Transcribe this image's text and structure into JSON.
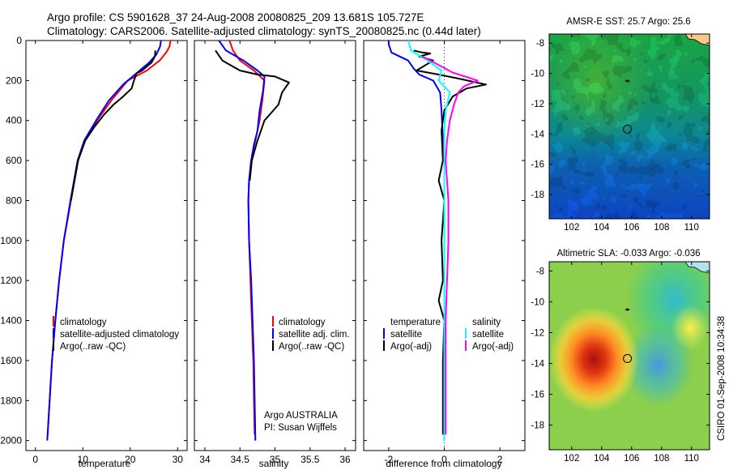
{
  "header": {
    "title_line1": "Argo profile: CS 5901628_37 24-Aug-2008 20080825_209 13.681S 105.727E",
    "title_line2": "Climatology: CARS2006. Satellite-adjusted climatology: synTS_20080825.nc (0.44d later)"
  },
  "colors": {
    "climatology": "#ff0000",
    "satellite": "#0000ff",
    "argo": "#000000",
    "salinity_satellite": "#00ffff",
    "salinity_argo": "#ff00ff"
  },
  "credits": {
    "program": "Argo AUSTRALIA",
    "pi": "PI: Susan Wijffels",
    "stamp": "CSIRO 01-Sep-2008 10:34:38"
  },
  "chart_data": [
    {
      "type": "line",
      "xlabel": "temperature",
      "xlim": [
        -2,
        32
      ],
      "ylim": [
        2050,
        0
      ],
      "xticks": [
        0,
        10,
        20,
        30
      ],
      "yticks": [
        0,
        200,
        400,
        600,
        800,
        1000,
        1200,
        1400,
        1600,
        1800,
        2000
      ],
      "legend": [
        "climatology",
        "satellite-adjusted climatology",
        "Argo(..raw -QC)"
      ],
      "series": [
        {
          "name": "climatology",
          "color": "#ff0000",
          "points": [
            [
              28.5,
              0
            ],
            [
              28.3,
              30
            ],
            [
              27.6,
              60
            ],
            [
              26.2,
              100
            ],
            [
              23.5,
              150
            ],
            [
              19.5,
              200
            ],
            [
              16,
              300
            ],
            [
              13,
              400
            ],
            [
              10.5,
              500
            ],
            [
              9,
              600
            ],
            [
              7.5,
              800
            ],
            [
              6,
              1000
            ],
            [
              5,
              1200
            ],
            [
              4.2,
              1400
            ],
            [
              3.5,
              1600
            ],
            [
              3,
              1800
            ],
            [
              2.6,
              1970
            ]
          ]
        },
        {
          "name": "satellite-adjusted climatology",
          "color": "#0000ff",
          "points": [
            [
              26.5,
              0
            ],
            [
              26.3,
              30
            ],
            [
              25.5,
              70
            ],
            [
              24,
              110
            ],
            [
              21.5,
              160
            ],
            [
              18.5,
              220
            ],
            [
              15.5,
              300
            ],
            [
              12.8,
              400
            ],
            [
              10.3,
              500
            ],
            [
              8.9,
              600
            ],
            [
              7.4,
              800
            ],
            [
              6,
              1000
            ],
            [
              5,
              1200
            ],
            [
              4.2,
              1400
            ],
            [
              3.5,
              1600
            ],
            [
              3,
              1800
            ],
            [
              2.5,
              2000
            ]
          ]
        },
        {
          "name": "Argo(..raw -QC)",
          "color": "#000000",
          "points": [
            [
              25.3,
              50
            ],
            [
              25.2,
              80
            ],
            [
              24.5,
              110
            ],
            [
              22.5,
              150
            ],
            [
              21.3,
              165
            ],
            [
              20.8,
              200
            ],
            [
              20.3,
              240
            ],
            [
              18.5,
              280
            ],
            [
              16.5,
              320
            ],
            [
              14.5,
              370
            ],
            [
              12.5,
              430
            ],
            [
              10.5,
              500
            ],
            [
              9,
              600
            ],
            [
              7.5,
              800
            ]
          ]
        }
      ]
    },
    {
      "type": "line",
      "xlabel": "salinity",
      "xlim": [
        33.85,
        36.15
      ],
      "ylim": [
        2050,
        0
      ],
      "xticks": [
        34,
        34.5,
        35,
        35.5,
        36
      ],
      "legend": [
        "climatology",
        "satellite adj. clim.",
        "Argo(..raw -QC)"
      ],
      "series": [
        {
          "name": "climatology",
          "color": "#ff0000",
          "points": [
            [
              34.35,
              0
            ],
            [
              34.4,
              50
            ],
            [
              34.5,
              100
            ],
            [
              34.7,
              150
            ],
            [
              34.85,
              200
            ],
            [
              34.82,
              300
            ],
            [
              34.78,
              400
            ],
            [
              34.72,
              500
            ],
            [
              34.66,
              600
            ],
            [
              34.63,
              700
            ],
            [
              34.62,
              800
            ],
            [
              34.63,
              1000
            ],
            [
              34.65,
              1200
            ],
            [
              34.67,
              1400
            ],
            [
              34.69,
              1600
            ],
            [
              34.7,
              1800
            ],
            [
              34.71,
              1970
            ]
          ]
        },
        {
          "name": "satellite adj. clim.",
          "color": "#0000ff",
          "points": [
            [
              34.2,
              0
            ],
            [
              34.3,
              50
            ],
            [
              34.55,
              100
            ],
            [
              34.75,
              150
            ],
            [
              34.85,
              180
            ],
            [
              34.83,
              250
            ],
            [
              34.78,
              350
            ],
            [
              34.75,
              450
            ],
            [
              34.7,
              520
            ],
            [
              34.66,
              600
            ],
            [
              34.63,
              700
            ],
            [
              34.62,
              800
            ],
            [
              34.63,
              1000
            ],
            [
              34.66,
              1200
            ],
            [
              34.68,
              1400
            ],
            [
              34.7,
              1600
            ],
            [
              34.71,
              1800
            ],
            [
              34.72,
              2000
            ]
          ]
        },
        {
          "name": "Argo(..raw -QC)",
          "color": "#000000",
          "points": [
            [
              34.15,
              50
            ],
            [
              34.25,
              100
            ],
            [
              34.5,
              150
            ],
            [
              34.75,
              170
            ],
            [
              35.0,
              180
            ],
            [
              35.2,
              210
            ],
            [
              35.1,
              260
            ],
            [
              35.05,
              320
            ],
            [
              34.95,
              360
            ],
            [
              34.85,
              400
            ],
            [
              34.75,
              500
            ],
            [
              34.67,
              600
            ],
            [
              34.64,
              700
            ]
          ]
        }
      ]
    },
    {
      "type": "line",
      "xlabel": "difference from climatology",
      "xlim": [
        -2.9,
        2.9
      ],
      "ylim": [
        2050,
        0
      ],
      "xticks": [
        -2,
        0,
        2
      ],
      "legend": [
        "temperature",
        "salinity",
        "satellite",
        "Argo(-adj)"
      ],
      "series": [
        {
          "name": "satellite",
          "group": "temperature",
          "color": "#0000ff",
          "points": [
            [
              -2,
              0
            ],
            [
              -2,
              20
            ],
            [
              -1.9,
              60
            ],
            [
              -1.3,
              100
            ],
            [
              -1.1,
              140
            ],
            [
              -0.9,
              170
            ],
            [
              -0.4,
              200
            ],
            [
              -0.15,
              260
            ],
            [
              -0.1,
              350
            ],
            [
              -0.05,
              500
            ],
            [
              0,
              600
            ],
            [
              0,
              800
            ],
            [
              0,
              1000
            ],
            [
              0,
              1200
            ],
            [
              0,
              1400
            ],
            [
              0,
              1600
            ],
            [
              0,
              1800
            ],
            [
              0,
              2000
            ]
          ]
        },
        {
          "name": "Argo(-adj)",
          "group": "temperature",
          "color": "#000000",
          "points": [
            [
              -1.1,
              50
            ],
            [
              -0.8,
              60
            ],
            [
              -0.5,
              65
            ],
            [
              -0.9,
              80
            ],
            [
              -0.4,
              100
            ],
            [
              -1.0,
              150
            ],
            [
              -0.2,
              170
            ],
            [
              0.5,
              190
            ],
            [
              1.5,
              220
            ],
            [
              0.8,
              240
            ],
            [
              0.3,
              280
            ],
            [
              0,
              350
            ],
            [
              -0.1,
              450
            ],
            [
              -0.05,
              600
            ],
            [
              -0.2,
              700
            ],
            [
              0,
              800
            ],
            [
              -0.1,
              1000
            ],
            [
              -0.05,
              1200
            ],
            [
              -0.2,
              1300
            ],
            [
              0,
              1400
            ],
            [
              -0.05,
              1600
            ],
            [
              -0.05,
              1800
            ],
            [
              -0.05,
              1970
            ]
          ]
        },
        {
          "name": "satellite",
          "group": "salinity",
          "color": "#00ffff",
          "points": [
            [
              -1.3,
              0
            ],
            [
              -1.2,
              50
            ],
            [
              -0.6,
              100
            ],
            [
              -0.1,
              150
            ],
            [
              -0.2,
              200
            ],
            [
              0.2,
              260
            ],
            [
              0.05,
              350
            ],
            [
              0,
              450
            ],
            [
              0,
              600
            ],
            [
              0,
              800
            ],
            [
              0,
              1000
            ],
            [
              0,
              1200
            ],
            [
              0,
              1400
            ],
            [
              0,
              1600
            ],
            [
              0,
              1800
            ],
            [
              0,
              2000
            ]
          ]
        },
        {
          "name": "Argo(-adj)",
          "group": "salinity",
          "color": "#ff00ff",
          "points": [
            [
              -0.8,
              80
            ],
            [
              -0.5,
              100
            ],
            [
              0.3,
              160
            ],
            [
              1.2,
              200
            ],
            [
              0.7,
              230
            ],
            [
              0.5,
              260
            ],
            [
              0.35,
              320
            ],
            [
              0.2,
              400
            ],
            [
              0.1,
              500
            ],
            [
              0.05,
              600
            ],
            [
              0.1,
              700
            ],
            [
              0.15,
              800
            ],
            [
              0.15,
              1000
            ],
            [
              0.1,
              1200
            ],
            [
              0.05,
              1400
            ],
            [
              0.05,
              1600
            ],
            [
              0.05,
              1800
            ],
            [
              0.05,
              1970
            ]
          ]
        }
      ]
    },
    {
      "type": "heatmap",
      "title": "AMSR-E SST: 25.7 Argo: 25.6",
      "xlim": [
        100.5,
        111.2
      ],
      "ylim": [
        -19.6,
        -7.4
      ],
      "xticks": [
        102,
        104,
        106,
        108,
        110
      ],
      "yticks": [
        -8,
        -10,
        -12,
        -14,
        -16,
        -18
      ],
      "markers": [
        {
          "x": 105.72,
          "y": -13.68,
          "symbol": "circle"
        },
        {
          "x": 105.72,
          "y": -10.5,
          "symbol": "float"
        }
      ]
    },
    {
      "type": "heatmap",
      "title": "Altimetric SLA: -0.033 Argo: -0.036",
      "xlim": [
        100.5,
        111.2
      ],
      "ylim": [
        -19.6,
        -7.4
      ],
      "xticks": [
        102,
        104,
        106,
        108,
        110
      ],
      "yticks": [
        -8,
        -10,
        -12,
        -14,
        -16,
        -18
      ],
      "markers": [
        {
          "x": 105.72,
          "y": -13.68,
          "symbol": "circle"
        },
        {
          "x": 105.72,
          "y": -10.5,
          "symbol": "float"
        }
      ]
    }
  ]
}
